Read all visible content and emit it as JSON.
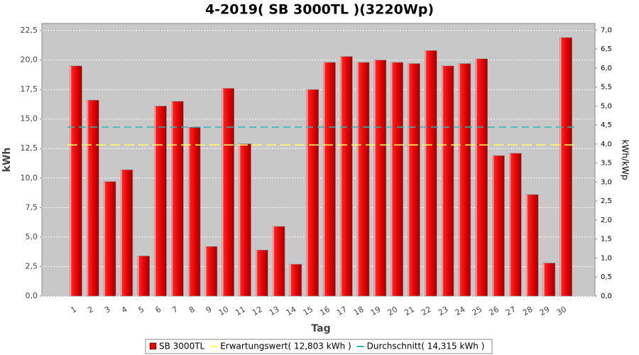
{
  "chart_data": {
    "type": "bar",
    "title": "4-2019( SB 3000TL )(3220Wp)",
    "x_label": "Tag",
    "y_label": "kWh",
    "y2_label": "kWh/kWp",
    "categories": [
      "1",
      "2",
      "3",
      "4",
      "5",
      "6",
      "7",
      "8",
      "9",
      "10",
      "11",
      "12",
      "13",
      "14",
      "15",
      "16",
      "17",
      "18",
      "19",
      "20",
      "21",
      "22",
      "23",
      "24",
      "25",
      "26",
      "27",
      "28",
      "29",
      "30"
    ],
    "series": [
      {
        "name": "SB 3000TL",
        "color": "#e80000",
        "values": [
          19.5,
          16.6,
          9.7,
          10.7,
          3.4,
          16.1,
          16.5,
          14.3,
          4.2,
          17.6,
          12.9,
          3.9,
          5.9,
          2.7,
          17.5,
          19.8,
          20.3,
          19.8,
          20.0,
          19.8,
          19.7,
          20.8,
          19.5,
          19.7,
          20.1,
          11.9,
          12.1,
          8.6,
          2.8,
          21.9
        ]
      }
    ],
    "lines": [
      {
        "name": "Erwartungswert( 12,803 kWh )",
        "color": "#ffff66",
        "value": 12.803
      },
      {
        "name": "Durchschnitt( 14,315 kWh )",
        "color": "#22bbbb",
        "value": 14.315
      }
    ],
    "ylim": [
      0,
      23.1
    ],
    "yticks": [
      {
        "value": 0,
        "label": "0,0"
      },
      {
        "value": 2.5,
        "label": "2,5"
      },
      {
        "value": 5,
        "label": "5,0"
      },
      {
        "value": 7.5,
        "label": "7,5"
      },
      {
        "value": 10,
        "label": "10,0"
      },
      {
        "value": 12.5,
        "label": "12,5"
      },
      {
        "value": 15,
        "label": "15,0"
      },
      {
        "value": 17.5,
        "label": "17,5"
      },
      {
        "value": 20,
        "label": "20,0"
      },
      {
        "value": 22.5,
        "label": "22,5"
      }
    ],
    "y2lim": [
      0,
      7.174
    ],
    "y2ticks": [
      {
        "value": 0,
        "label": "0,0"
      },
      {
        "value": 0.5,
        "label": "0,5"
      },
      {
        "value": 1,
        "label": "1,0"
      },
      {
        "value": 1.5,
        "label": "1,5"
      },
      {
        "value": 2,
        "label": "2,0"
      },
      {
        "value": 2.5,
        "label": "2,5"
      },
      {
        "value": 3,
        "label": "3,0"
      },
      {
        "value": 3.5,
        "label": "3,5"
      },
      {
        "value": 4,
        "label": "4,0"
      },
      {
        "value": 4.5,
        "label": "4,5"
      },
      {
        "value": 5,
        "label": "5,0"
      },
      {
        "value": 5.5,
        "label": "5,5"
      },
      {
        "value": 6,
        "label": "6,0"
      },
      {
        "value": 6.5,
        "label": "6,5"
      },
      {
        "value": 7,
        "label": "7,0"
      }
    ],
    "grid": true,
    "legend": "bottom"
  }
}
